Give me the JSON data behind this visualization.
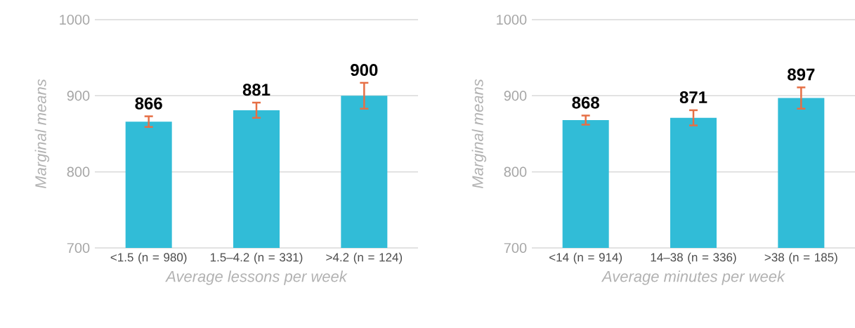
{
  "chart_data": [
    {
      "type": "bar",
      "xlabel": "Average lessons per week",
      "ylabel": "Marginal means",
      "categories": [
        "<1.5 (n = 980)",
        "1.5–4.2 (n = 331)",
        ">4.2 (n = 124)"
      ],
      "values": [
        866,
        881,
        900
      ],
      "errors": [
        7,
        10,
        17
      ],
      "color": "#31bcd7",
      "data_labels": true,
      "ylim": [
        700,
        1000
      ],
      "yticks": [
        700,
        800,
        900,
        1000
      ],
      "grid": "y"
    },
    {
      "type": "bar",
      "xlabel": "Average minutes per week",
      "ylabel": "Marginal means",
      "categories": [
        "<14 (n = 914)",
        "14–38 (n = 336)",
        ">38 (n = 185)"
      ],
      "values": [
        868,
        871,
        897
      ],
      "errors": [
        6,
        10,
        14
      ],
      "color": "#31bcd7",
      "data_labels": true,
      "ylim": [
        700,
        1000
      ],
      "yticks": [
        700,
        800,
        900,
        1000
      ],
      "grid": "y"
    }
  ]
}
